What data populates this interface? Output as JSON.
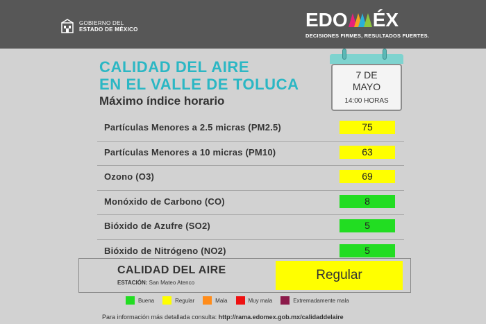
{
  "header": {
    "gov_line1": "GOBIERNO DEL",
    "gov_line2": "ESTADO DE MÉXICO",
    "brand_pre": "EDO",
    "brand_post": "ÉX",
    "brand_tagline": "DECISIONES FIRMES, RESULTADOS FUERTES."
  },
  "title": {
    "line1": "CALIDAD DEL AIRE",
    "line2": "EN EL VALLE DE TOLUCA",
    "subtitle": "Máximo índice horario"
  },
  "calendar": {
    "date_line1": "7 DE",
    "date_line2": "MAYO",
    "hour": "14:00 HORAS"
  },
  "pollutants": [
    {
      "label": "Partículas Menores a 2.5 micras (PM2.5)",
      "value": "75",
      "color": "#ffff00"
    },
    {
      "label": "Partículas Menores a 10 micras (PM10)",
      "value": "63",
      "color": "#ffff00"
    },
    {
      "label": "Ozono (O3)",
      "value": "69",
      "color": "#ffff00"
    },
    {
      "label": "Monóxido de Carbono (CO)",
      "value": "8",
      "color": "#22dd22"
    },
    {
      "label": "Bióxido de Azufre (SO2)",
      "value": "5",
      "color": "#22dd22"
    },
    {
      "label": "Bióxido de Nitrógeno (NO2)",
      "value": "5",
      "color": "#22dd22"
    }
  ],
  "summary": {
    "title": "CALIDAD DEL AIRE",
    "station_label": "ESTACIÓN:",
    "station_name": "San Mateo Atenco",
    "quality": "Regular",
    "quality_color": "#ffff00"
  },
  "legend": [
    {
      "label": "Buena",
      "color": "#22dd22"
    },
    {
      "label": "Regular",
      "color": "#ffff00"
    },
    {
      "label": "Mala",
      "color": "#ff8c1a"
    },
    {
      "label": "Muy mala",
      "color": "#ee1111"
    },
    {
      "label": "Extremadamente mala",
      "color": "#8b1a4a"
    }
  ],
  "footer": {
    "text": "Para información más detallada consulta:",
    "url": "http://rama.edomex.gob.mx/calidaddelaire"
  }
}
